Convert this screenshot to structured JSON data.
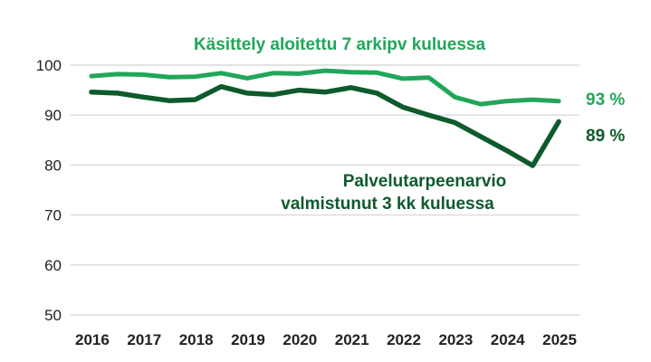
{
  "chart_data": {
    "type": "line",
    "x": [
      2016,
      2016.5,
      2017,
      2017.5,
      2018,
      2018.5,
      2019,
      2019.5,
      2020,
      2020.5,
      2021,
      2021.5,
      2022,
      2022.5,
      2023,
      2023.5,
      2024,
      2024.5,
      2025
    ],
    "xticks": [
      "2016",
      "2017",
      "2018",
      "2019",
      "2020",
      "2021",
      "2022",
      "2023",
      "2024",
      "2025"
    ],
    "yticks": [
      "50",
      "60",
      "70",
      "80",
      "90",
      "100"
    ],
    "ylim": [
      50,
      100
    ],
    "grid": true,
    "series": [
      {
        "name": "Käsittely aloitettu 7 arkipv kuluessa",
        "end_label": "93 %",
        "color": "#21a65a",
        "values": [
          97.8,
          98.2,
          98.1,
          97.6,
          97.7,
          98.4,
          97.4,
          98.4,
          98.3,
          98.9,
          98.6,
          98.5,
          97.3,
          97.5,
          93.6,
          92.2,
          92.8,
          93.1,
          92.8
        ]
      },
      {
        "name": "Palvelutarpeenarvio valmistunut 3 kk kuluessa",
        "name_lines": [
          "Palvelutarpeenarvio",
          "valmistunut 3 kk kuluessa"
        ],
        "end_label": "89 %",
        "color": "#0e5a2c",
        "values": [
          94.6,
          94.4,
          93.6,
          92.9,
          93.1,
          95.7,
          94.4,
          94.1,
          95.0,
          94.6,
          95.5,
          94.4,
          91.6,
          90.0,
          88.5,
          85.7,
          82.9,
          79.9,
          88.7
        ]
      }
    ]
  }
}
